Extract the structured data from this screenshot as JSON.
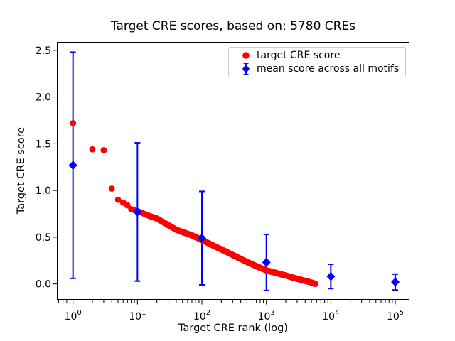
{
  "chart_data": {
    "type": "scatter",
    "title": "Target CRE scores, based on: 5780 CREs",
    "xlabel": "Target CRE rank (log)",
    "ylabel": "Target CRE score",
    "x_scale": "log",
    "xlim_log10": [
      -0.25,
      5.22
    ],
    "ylim": [
      -0.17,
      2.59
    ],
    "x_tick_base": "10",
    "x_tick_exponents": [
      "0",
      "1",
      "2",
      "3",
      "4",
      "5"
    ],
    "y_ticks": [
      0.0,
      0.5,
      1.0,
      1.5,
      2.0,
      2.5
    ],
    "y_tick_labels": [
      "0.0",
      "0.5",
      "1.0",
      "1.5",
      "2.0",
      "2.5"
    ],
    "grid": false,
    "n_cres": 5780,
    "colors": {
      "target_series": "#ff0000",
      "mean_series": "#0000ff",
      "axes": "#000000",
      "legend_border": "#cccccc",
      "background": "#ffffff"
    },
    "legend": {
      "position": "upper right",
      "entries": [
        {
          "label": "target CRE score",
          "marker": "circle",
          "color": "#ff0000"
        },
        {
          "label": "mean score across all motifs",
          "marker": "diamond-errorbar",
          "color": "#0000ff"
        }
      ]
    },
    "series": [
      {
        "name": "target CRE score",
        "type": "scatter",
        "color": "#ff0000",
        "marker": "circle",
        "note": "one point per CRE rank 1..5780; control points read from plot, piecewise-linear in log10(rank)",
        "control_points": [
          [
            1,
            1.72
          ],
          [
            2,
            1.44
          ],
          [
            3,
            1.43
          ],
          [
            4,
            1.02
          ],
          [
            5,
            0.9
          ],
          [
            6,
            0.87
          ],
          [
            7,
            0.84
          ],
          [
            8,
            0.8
          ],
          [
            9,
            0.79
          ],
          [
            10,
            0.78
          ],
          [
            15,
            0.73
          ],
          [
            20,
            0.7
          ],
          [
            30,
            0.63
          ],
          [
            40,
            0.58
          ],
          [
            50,
            0.555
          ],
          [
            70,
            0.52
          ],
          [
            100,
            0.47
          ],
          [
            150,
            0.41
          ],
          [
            200,
            0.37
          ],
          [
            300,
            0.31
          ],
          [
            500,
            0.235
          ],
          [
            700,
            0.19
          ],
          [
            1000,
            0.145
          ],
          [
            2000,
            0.09
          ],
          [
            3000,
            0.055
          ],
          [
            5000,
            0.015
          ],
          [
            5780,
            0.0
          ]
        ]
      },
      {
        "name": "mean score across all motifs",
        "type": "errorbar",
        "color": "#0000ff",
        "marker": "diamond",
        "points": [
          {
            "rank": 1,
            "mean": 1.27,
            "err": 1.21
          },
          {
            "rank": 10,
            "mean": 0.77,
            "err": 0.74
          },
          {
            "rank": 100,
            "mean": 0.49,
            "err": 0.5
          },
          {
            "rank": 1000,
            "mean": 0.23,
            "err": 0.3
          },
          {
            "rank": 10000,
            "mean": 0.08,
            "err": 0.13
          },
          {
            "rank": 100000,
            "mean": 0.02,
            "err": 0.085
          }
        ]
      }
    ]
  }
}
